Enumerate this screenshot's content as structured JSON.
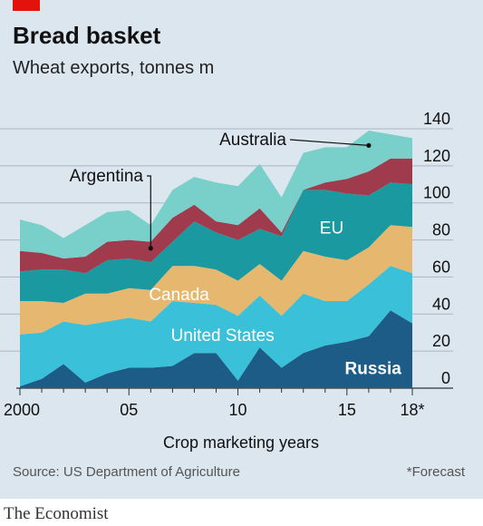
{
  "header": {
    "title": "Bread basket",
    "subtitle": "Wheat exports, tonnes m"
  },
  "footer": {
    "source": "Source: US Department of Agriculture",
    "note": "*Forecast",
    "brand": "The Economist"
  },
  "colors": {
    "russia": "#1d5c87",
    "united_states": "#3ac0d9",
    "canada": "#e6b86f",
    "eu": "#1a9aa0",
    "argentina": "#a03a4d",
    "australia": "#79d0cb",
    "background": "#dbe6ef",
    "brand_red": "#e3120b"
  },
  "chart_data": {
    "type": "area",
    "stacked": true,
    "xlabel": "Crop marketing years",
    "ylabel": "",
    "x": [
      2000,
      2001,
      2002,
      2003,
      2004,
      2005,
      2006,
      2007,
      2008,
      2009,
      2010,
      2011,
      2012,
      2013,
      2014,
      2015,
      2016,
      2017,
      2018
    ],
    "x_tick_labels": [
      {
        "x": 2000,
        "label": "2000"
      },
      {
        "x": 2005,
        "label": "05"
      },
      {
        "x": 2010,
        "label": "10"
      },
      {
        "x": 2015,
        "label": "15"
      },
      {
        "x": 2018,
        "label": "18*"
      }
    ],
    "ylim": [
      0,
      140
    ],
    "yticks": [
      0,
      20,
      40,
      60,
      80,
      100,
      120,
      140
    ],
    "y_axis_position": "right",
    "grid": true,
    "series": [
      {
        "name": "Russia",
        "values": [
          1,
          5,
          13,
          3,
          8,
          11,
          11,
          12,
          19,
          19,
          4,
          22,
          11,
          19,
          23,
          25,
          28,
          42,
          35
        ]
      },
      {
        "name": "United States",
        "values": [
          28,
          25,
          23,
          31,
          28,
          27,
          25,
          35,
          27,
          26,
          35,
          28,
          28,
          32,
          24,
          22,
          28,
          24,
          27
        ]
      },
      {
        "name": "Canada",
        "values": [
          18,
          17,
          10,
          17,
          15,
          16,
          17,
          19,
          20,
          19,
          19,
          17,
          19,
          23,
          24,
          22,
          20,
          22,
          25
        ]
      },
      {
        "name": "EU",
        "values": [
          16,
          17,
          18,
          11,
          18,
          16,
          15,
          13,
          24,
          20,
          22,
          19,
          24,
          33,
          36,
          36,
          28,
          23,
          23
        ]
      },
      {
        "name": "Argentina",
        "values": [
          11,
          9,
          6,
          9,
          10,
          10,
          11,
          13,
          9,
          6,
          8,
          11,
          2,
          0,
          4,
          8,
          13,
          13,
          14
        ]
      },
      {
        "name": "Australia",
        "values": [
          17,
          15,
          11,
          17,
          16,
          16,
          9,
          15,
          15,
          21,
          21,
          24,
          19,
          20,
          19,
          17,
          22,
          13,
          11
        ]
      }
    ],
    "series_labels": [
      {
        "name": "Russia",
        "x": 2016.2,
        "y": 11,
        "inside": true
      },
      {
        "name": "United States",
        "x": 2009.3,
        "y": 29,
        "inside": true
      },
      {
        "name": "Canada",
        "x": 2007.3,
        "y": 51,
        "inside": true
      },
      {
        "name": "EU",
        "x": 2014.3,
        "y": 87,
        "inside": true
      },
      {
        "name": "Argentina",
        "leader_to_x": 2006,
        "leader_to_y": 75.5,
        "inside": false
      },
      {
        "name": "Australia",
        "leader_to_x": 2016,
        "leader_to_y": 131,
        "inside": false
      }
    ]
  }
}
